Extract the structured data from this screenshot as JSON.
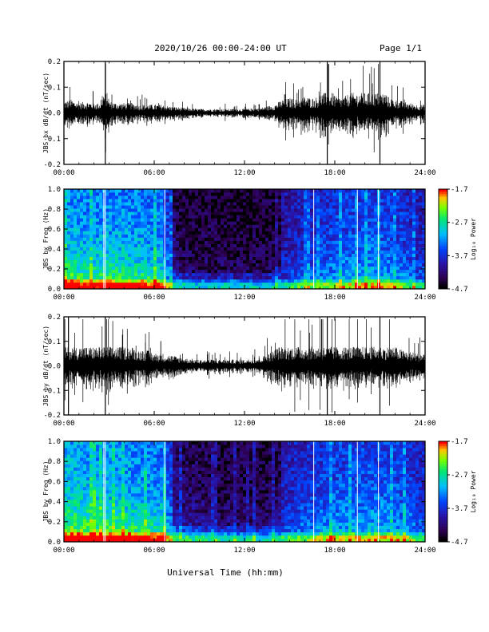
{
  "header": {
    "title": "2020/10/26  00:00-24:00 UT",
    "page": "Page 1/1"
  },
  "footer": {
    "xlabel": "Universal Time (hh:mm)"
  },
  "chart_data": [
    {
      "type": "line",
      "name_id": "bx-waveform",
      "ylabel": "JBS bx dB/dt (nT/sec)",
      "xlim": [
        0,
        24
      ],
      "ylim": [
        -0.2,
        0.2
      ],
      "x_ticks": [
        "00:00",
        "06:00",
        "12:00",
        "18:00",
        "24:00"
      ],
      "y_ticks": [
        "-0.2",
        "-0.1",
        "0.0",
        "0.1",
        "0.2"
      ],
      "series": [
        {
          "x": [
            0,
            0.5,
            1,
            1.5,
            2,
            2.5,
            2.75,
            3,
            3.5,
            4,
            4.5,
            5,
            5.5,
            6,
            6.5,
            7,
            7.5,
            8,
            9,
            10,
            11,
            12,
            13,
            14,
            14.5,
            15,
            15.5,
            16,
            16.5,
            17,
            17.5,
            18,
            18.5,
            19,
            19.5,
            20,
            20.5,
            21,
            21.5,
            22,
            22.5,
            23,
            23.5,
            24
          ],
          "env": [
            0.035,
            0.04,
            0.03,
            0.035,
            0.03,
            0.03,
            0.2,
            0.035,
            0.03,
            0.03,
            0.03,
            0.025,
            0.025,
            0.025,
            0.025,
            0.02,
            0.018,
            0.015,
            0.012,
            0.012,
            0.012,
            0.012,
            0.015,
            0.025,
            0.04,
            0.045,
            0.04,
            0.05,
            0.045,
            0.05,
            0.2,
            0.05,
            0.045,
            0.06,
            0.07,
            0.06,
            0.06,
            0.2,
            0.05,
            0.04,
            0.035,
            0.03,
            0.025,
            0.025
          ]
        }
      ]
    },
    {
      "type": "heatmap",
      "name_id": "bx-spectrogram",
      "ylabel": "JBS bx Freq (Hz)",
      "xlim": [
        0,
        24
      ],
      "ylim": [
        0.0,
        1.0
      ],
      "x_ticks": [
        "00:00",
        "06:00",
        "12:00",
        "18:00",
        "24:00"
      ],
      "y_ticks": [
        "0.0",
        "0.2",
        "0.4",
        "0.6",
        "0.8",
        "1.0"
      ],
      "colorbar": {
        "label": "Log₁₀ Power",
        "range": [
          -4.7,
          -1.7
        ],
        "ticks": [
          "-1.7",
          "-2.7",
          "-3.7",
          "-4.7"
        ]
      },
      "activity": [
        0.85,
        0.8,
        0.8,
        0.82,
        0.8,
        0.78,
        0.75,
        0.35,
        0.3,
        0.3,
        0.3,
        0.3,
        0.3,
        0.3,
        0.35,
        0.45,
        0.5,
        0.55,
        0.6,
        0.6,
        0.65,
        0.6,
        0.55,
        0.45
      ]
    },
    {
      "type": "line",
      "name_id": "by-waveform",
      "ylabel": "JBS by dB/dt (nT/sec)",
      "xlim": [
        0,
        24
      ],
      "ylim": [
        -0.2,
        0.2
      ],
      "x_ticks": [
        "00:00",
        "06:00",
        "12:00",
        "18:00",
        "24:00"
      ],
      "y_ticks": [
        "-0.2",
        "-0.1",
        "0.0",
        "0.1",
        "0.2"
      ],
      "series": [
        {
          "x": [
            0,
            0.3,
            0.5,
            1,
            1.5,
            2,
            2.5,
            2.75,
            3,
            3.5,
            4,
            4.5,
            5,
            5.5,
            6,
            6.5,
            7,
            7.5,
            8,
            9,
            10,
            11,
            12,
            13,
            14,
            14.5,
            15,
            15.5,
            16,
            16.5,
            17,
            17.5,
            18,
            18.5,
            19,
            19.5,
            20,
            20.5,
            21,
            21.5,
            22,
            22.5,
            23,
            23.5,
            24
          ],
          "env": [
            0.08,
            0.2,
            0.09,
            0.08,
            0.07,
            0.07,
            0.07,
            0.2,
            0.06,
            0.08,
            0.06,
            0.06,
            0.05,
            0.05,
            0.04,
            0.04,
            0.035,
            0.03,
            0.025,
            0.02,
            0.02,
            0.02,
            0.02,
            0.025,
            0.05,
            0.08,
            0.1,
            0.1,
            0.08,
            0.09,
            0.1,
            0.2,
            0.09,
            0.07,
            0.08,
            0.08,
            0.07,
            0.07,
            0.2,
            0.07,
            0.06,
            0.05,
            0.045,
            0.04,
            0.04
          ]
        }
      ]
    },
    {
      "type": "heatmap",
      "name_id": "by-spectrogram",
      "ylabel": "JBS by Freq (Hz)",
      "xlim": [
        0,
        24
      ],
      "ylim": [
        0.0,
        1.0
      ],
      "x_ticks": [
        "00:00",
        "06:00",
        "12:00",
        "18:00",
        "24:00"
      ],
      "y_ticks": [
        "0.0",
        "0.2",
        "0.4",
        "0.6",
        "0.8",
        "1.0"
      ],
      "colorbar": {
        "label": "Log₁₀ Power",
        "range": [
          -4.7,
          -1.7
        ],
        "ticks": [
          "-1.7",
          "-2.7",
          "-3.7",
          "-4.7"
        ]
      },
      "activity": [
        0.9,
        0.88,
        0.85,
        0.85,
        0.82,
        0.8,
        0.78,
        0.45,
        0.4,
        0.38,
        0.35,
        0.35,
        0.35,
        0.35,
        0.4,
        0.5,
        0.55,
        0.6,
        0.62,
        0.62,
        0.65,
        0.62,
        0.6,
        0.5
      ]
    }
  ]
}
